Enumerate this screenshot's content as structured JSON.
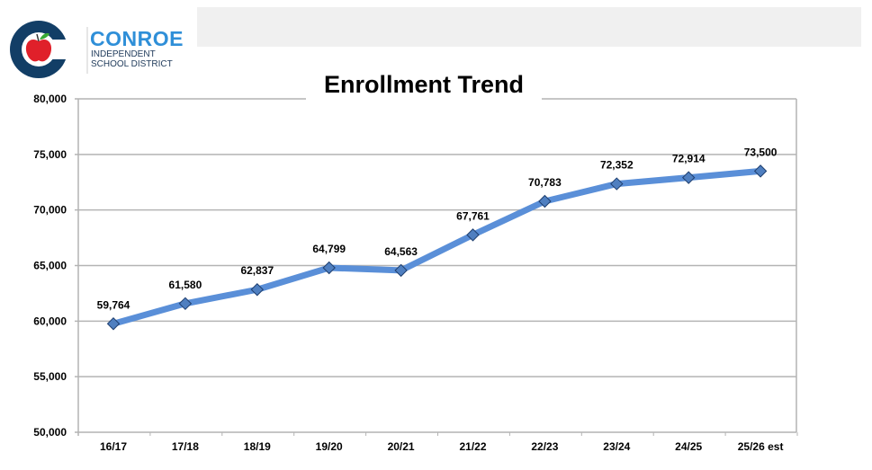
{
  "header": {
    "logo": {
      "name": "CONROE",
      "subtitle_line1": "INDEPENDENT",
      "subtitle_line2": "SCHOOL DISTRICT"
    }
  },
  "chart_data": {
    "type": "line",
    "title": "Enrollment Trend",
    "categories": [
      "16/17",
      "17/18",
      "18/19",
      "19/20",
      "20/21",
      "21/22",
      "22/23",
      "23/24",
      "24/25",
      "25/26 est"
    ],
    "series": [
      {
        "values": [
          59764,
          61580,
          62837,
          64799,
          64563,
          67761,
          70783,
          72352,
          72914,
          73500
        ]
      }
    ],
    "data_labels": [
      "59,764",
      "61,580",
      "62,837",
      "64,799",
      "64,563",
      "67,761",
      "70,783",
      "72,352",
      "72,914",
      "73,500"
    ],
    "ylim": [
      50000,
      80000
    ],
    "yticks": [
      50000,
      55000,
      60000,
      65000,
      70000,
      75000,
      80000
    ],
    "ytick_labels": [
      "50,000",
      "55,000",
      "60,000",
      "65,000",
      "70,000",
      "75,000",
      "80,000"
    ],
    "grid": true,
    "legend": "none",
    "colors": {
      "line": "#5a8fd8",
      "marker_fill": "#4f7fc0",
      "marker_edge": "#1f3f6f",
      "grid": "#b4b4b4"
    }
  }
}
